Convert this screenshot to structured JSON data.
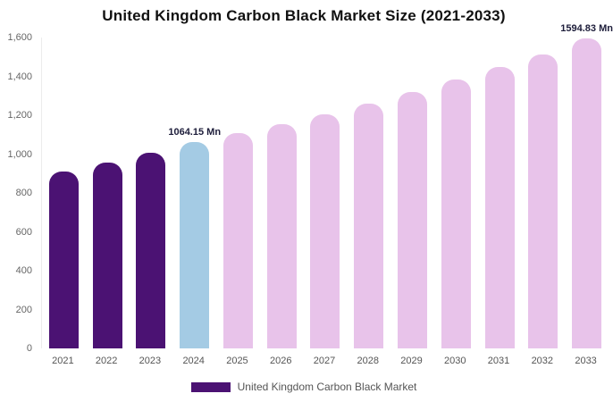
{
  "title": "United Kingdom Carbon Black Market Size (2021-2033)",
  "legend": {
    "label": "United Kingdom Carbon Black Market",
    "color": "#4b1273"
  },
  "chart_data": {
    "type": "bar",
    "title": "United Kingdom Carbon Black Market Size (2021-2033)",
    "unit": "Mn",
    "categories": [
      "2021",
      "2022",
      "2023",
      "2024",
      "2025",
      "2026",
      "2027",
      "2028",
      "2029",
      "2030",
      "2031",
      "2032",
      "2033"
    ],
    "values": [
      912,
      958,
      1007,
      1064.15,
      1106,
      1153,
      1205,
      1261,
      1320,
      1382,
      1447,
      1515,
      1594.83
    ],
    "ylim": [
      0,
      1600
    ],
    "yticks": [
      {
        "value": 0,
        "label": "0"
      },
      {
        "value": 200,
        "label": "200"
      },
      {
        "value": 400,
        "label": "400"
      },
      {
        "value": 600,
        "label": "600"
      },
      {
        "value": 800,
        "label": "800"
      },
      {
        "value": 1000,
        "label": "1,000"
      },
      {
        "value": 1200,
        "label": "1,200"
      },
      {
        "value": 1400,
        "label": "1,400"
      },
      {
        "value": 1600,
        "label": "1,600"
      }
    ],
    "bar_colors": [
      "#4b1273",
      "#4b1273",
      "#4b1273",
      "#a4cbe4",
      "#e8c3ea",
      "#e8c3ea",
      "#e8c3ea",
      "#e8c3ea",
      "#e8c3ea",
      "#e8c3ea",
      "#e8c3ea",
      "#e8c3ea",
      "#e8c3ea"
    ],
    "annotations": [
      {
        "index": 3,
        "text": "1064.15 Mn"
      },
      {
        "index": 12,
        "text": "1594.83 Mn"
      }
    ],
    "legend_position": "bottom",
    "grid": false,
    "xlabel": "",
    "ylabel": ""
  }
}
